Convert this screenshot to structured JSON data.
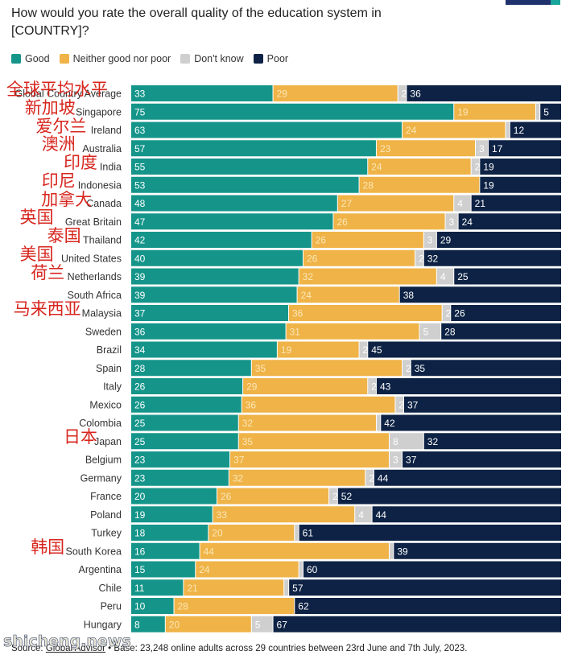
{
  "title_line1": "How would you rate the overall quality of the education system in",
  "title_line2": "[COUNTRY]?",
  "legend": [
    {
      "label": "Good",
      "color": "#15958a"
    },
    {
      "label": "Neither good nor poor",
      "color": "#efb347"
    },
    {
      "label": "Don't know",
      "color": "#cfcfcf"
    },
    {
      "label": "Poor",
      "color": "#0d2244"
    }
  ],
  "chart_data": {
    "type": "bar",
    "orientation": "horizontal",
    "stacked": true,
    "categories": [
      "Global Country Average",
      "Singapore",
      "Ireland",
      "Australia",
      "India",
      "Indonesia",
      "Canada",
      "Great Britain",
      "Thailand",
      "United States",
      "Netherlands",
      "South Africa",
      "Malaysia",
      "Sweden",
      "Brazil",
      "Spain",
      "Italy",
      "Mexico",
      "Colombia",
      "Japan",
      "Belgium",
      "Germany",
      "France",
      "Poland",
      "Turkey",
      "South Korea",
      "Argentina",
      "Chile",
      "Peru",
      "Hungary"
    ],
    "series": [
      {
        "name": "Good",
        "color": "#15958a",
        "values": [
          33,
          75,
          63,
          57,
          55,
          53,
          48,
          47,
          42,
          40,
          39,
          39,
          37,
          36,
          34,
          28,
          26,
          26,
          25,
          25,
          23,
          23,
          20,
          19,
          18,
          16,
          15,
          11,
          10,
          8
        ]
      },
      {
        "name": "Neither good nor poor",
        "color": "#efb347",
        "values": [
          29,
          19,
          24,
          23,
          24,
          28,
          27,
          26,
          26,
          26,
          32,
          24,
          36,
          31,
          19,
          35,
          29,
          36,
          32,
          35,
          37,
          32,
          26,
          33,
          20,
          44,
          24,
          21,
          28,
          20
        ]
      },
      {
        "name": "Don't know",
        "color": "#cfcfcf",
        "values": [
          2,
          1,
          1,
          3,
          2,
          0,
          4,
          3,
          3,
          2,
          4,
          0,
          2,
          5,
          2,
          2,
          2,
          2,
          1,
          8,
          3,
          2,
          2,
          4,
          1,
          1,
          1,
          1,
          0,
          5
        ]
      },
      {
        "name": "Poor",
        "color": "#0d2244",
        "values": [
          36,
          5,
          12,
          17,
          19,
          19,
          21,
          24,
          29,
          32,
          25,
          38,
          26,
          28,
          45,
          35,
          43,
          37,
          42,
          32,
          37,
          44,
          52,
          44,
          61,
          39,
          60,
          57,
          62,
          67
        ]
      }
    ],
    "xlim": [
      0,
      100
    ],
    "label_min_value": 2
  },
  "cn_annotations": [
    {
      "text": "全球平均水平",
      "row": 0
    },
    {
      "text": "新加坡",
      "row": 1
    },
    {
      "text": "爱尔兰",
      "row": 2
    },
    {
      "text": "澳洲",
      "row": 3
    },
    {
      "text": "印度",
      "row": 4
    },
    {
      "text": "印尼",
      "row": 5
    },
    {
      "text": "加拿大",
      "row": 6
    },
    {
      "text": "英国",
      "row": 7
    },
    {
      "text": "泰国",
      "row": 8
    },
    {
      "text": "美国",
      "row": 9
    },
    {
      "text": "荷兰",
      "row": 10
    },
    {
      "text": "马来西亚",
      "row": 12
    },
    {
      "text": "日本",
      "row": 19
    },
    {
      "text": "韩国",
      "row": 25
    }
  ],
  "source_prefix": "Source: ",
  "source_link": "Global Advisor",
  "source_rest": " • Base: 23,248 online adults across 29 countries between 23rd June and 7th July, 2023.",
  "watermark": "shicheng.news"
}
